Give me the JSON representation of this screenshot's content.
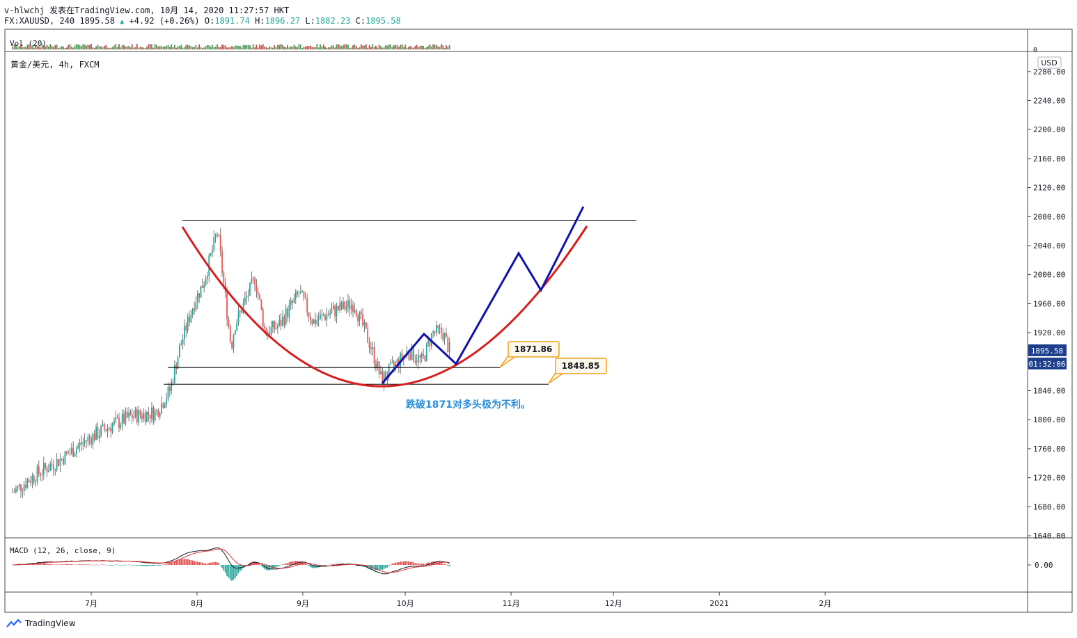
{
  "header": {
    "line1": "v-hlwchj 发表在TradingView.com, 10月 14, 2020 11:27:57 HKT",
    "symbol": "FX:XAUUSD, 240",
    "last": "1895.58",
    "change": "+4.92 (+0.26%)",
    "o_label": "O:",
    "o": "1891.74",
    "h_label": "H:",
    "h": "1896.27",
    "l_label": "L:",
    "l": "1882.23",
    "c_label": "C:",
    "c": "1895.58"
  },
  "panes": {
    "vol_label": "Vol (20)",
    "vol_zero": "0",
    "main_label": "黄金/美元, 4h, FXCM",
    "currency": "USD",
    "macd_label": "MACD (12, 26, close, 9)",
    "macd_zero": "0.00"
  },
  "badges": {
    "price": "1895.58",
    "countdown": "01:32:06",
    "badge_color": "#1e3f8c"
  },
  "annotations": {
    "callout_1": "1871.86",
    "callout_2": "1848.85",
    "note": "跌破1871对多头极为不利。",
    "note_color": "#2a8fd9",
    "callout_border": "#f0a020",
    "curve_color": "#d91c1c",
    "path_color": "#1010b0"
  },
  "chart_data": {
    "type": "line",
    "title": "黄金/美元, 4h, FXCM",
    "xlabel": "",
    "ylabel": "",
    "x_ticks": [
      "7月",
      "8月",
      "9月",
      "10月",
      "11月",
      "12月",
      "2021",
      "2月"
    ],
    "y_ticks": [
      "2280.00",
      "2240.00",
      "2200.00",
      "2160.00",
      "2120.00",
      "2080.00",
      "2040.00",
      "2000.00",
      "1960.00",
      "1920.00",
      "1880.00",
      "1840.00",
      "1800.00",
      "1760.00",
      "1720.00",
      "1680.00",
      "1640.00"
    ],
    "ylim": [
      1640,
      2300
    ],
    "series": [
      {
        "x": [
          "2020-06-08",
          "2020-06-15",
          "2020-06-22",
          "2020-06-29",
          "2020-07-06",
          "2020-07-13",
          "2020-07-20",
          "2020-07-24",
          "2020-07-27",
          "2020-07-31",
          "2020-08-03",
          "2020-08-07",
          "2020-08-11",
          "2020-08-12",
          "2020-08-18",
          "2020-08-21",
          "2020-08-25",
          "2020-08-31",
          "2020-09-04",
          "2020-09-10",
          "2020-09-16",
          "2020-09-21",
          "2020-09-24",
          "2020-09-28",
          "2020-10-02",
          "2020-10-06",
          "2020-10-09",
          "2020-10-12",
          "2020-10-14"
        ],
        "values": [
          1700,
          1725,
          1745,
          1770,
          1790,
          1805,
          1810,
          1840,
          1900,
          1960,
          1990,
          2060,
          1900,
          1930,
          1995,
          1920,
          1930,
          1975,
          1935,
          1950,
          1960,
          1900,
          1855,
          1875,
          1895,
          1880,
          1920,
          1920,
          1895.58
        ]
      }
    ],
    "levels": [
      2075,
      1871.86,
      1848.85
    ]
  }
}
